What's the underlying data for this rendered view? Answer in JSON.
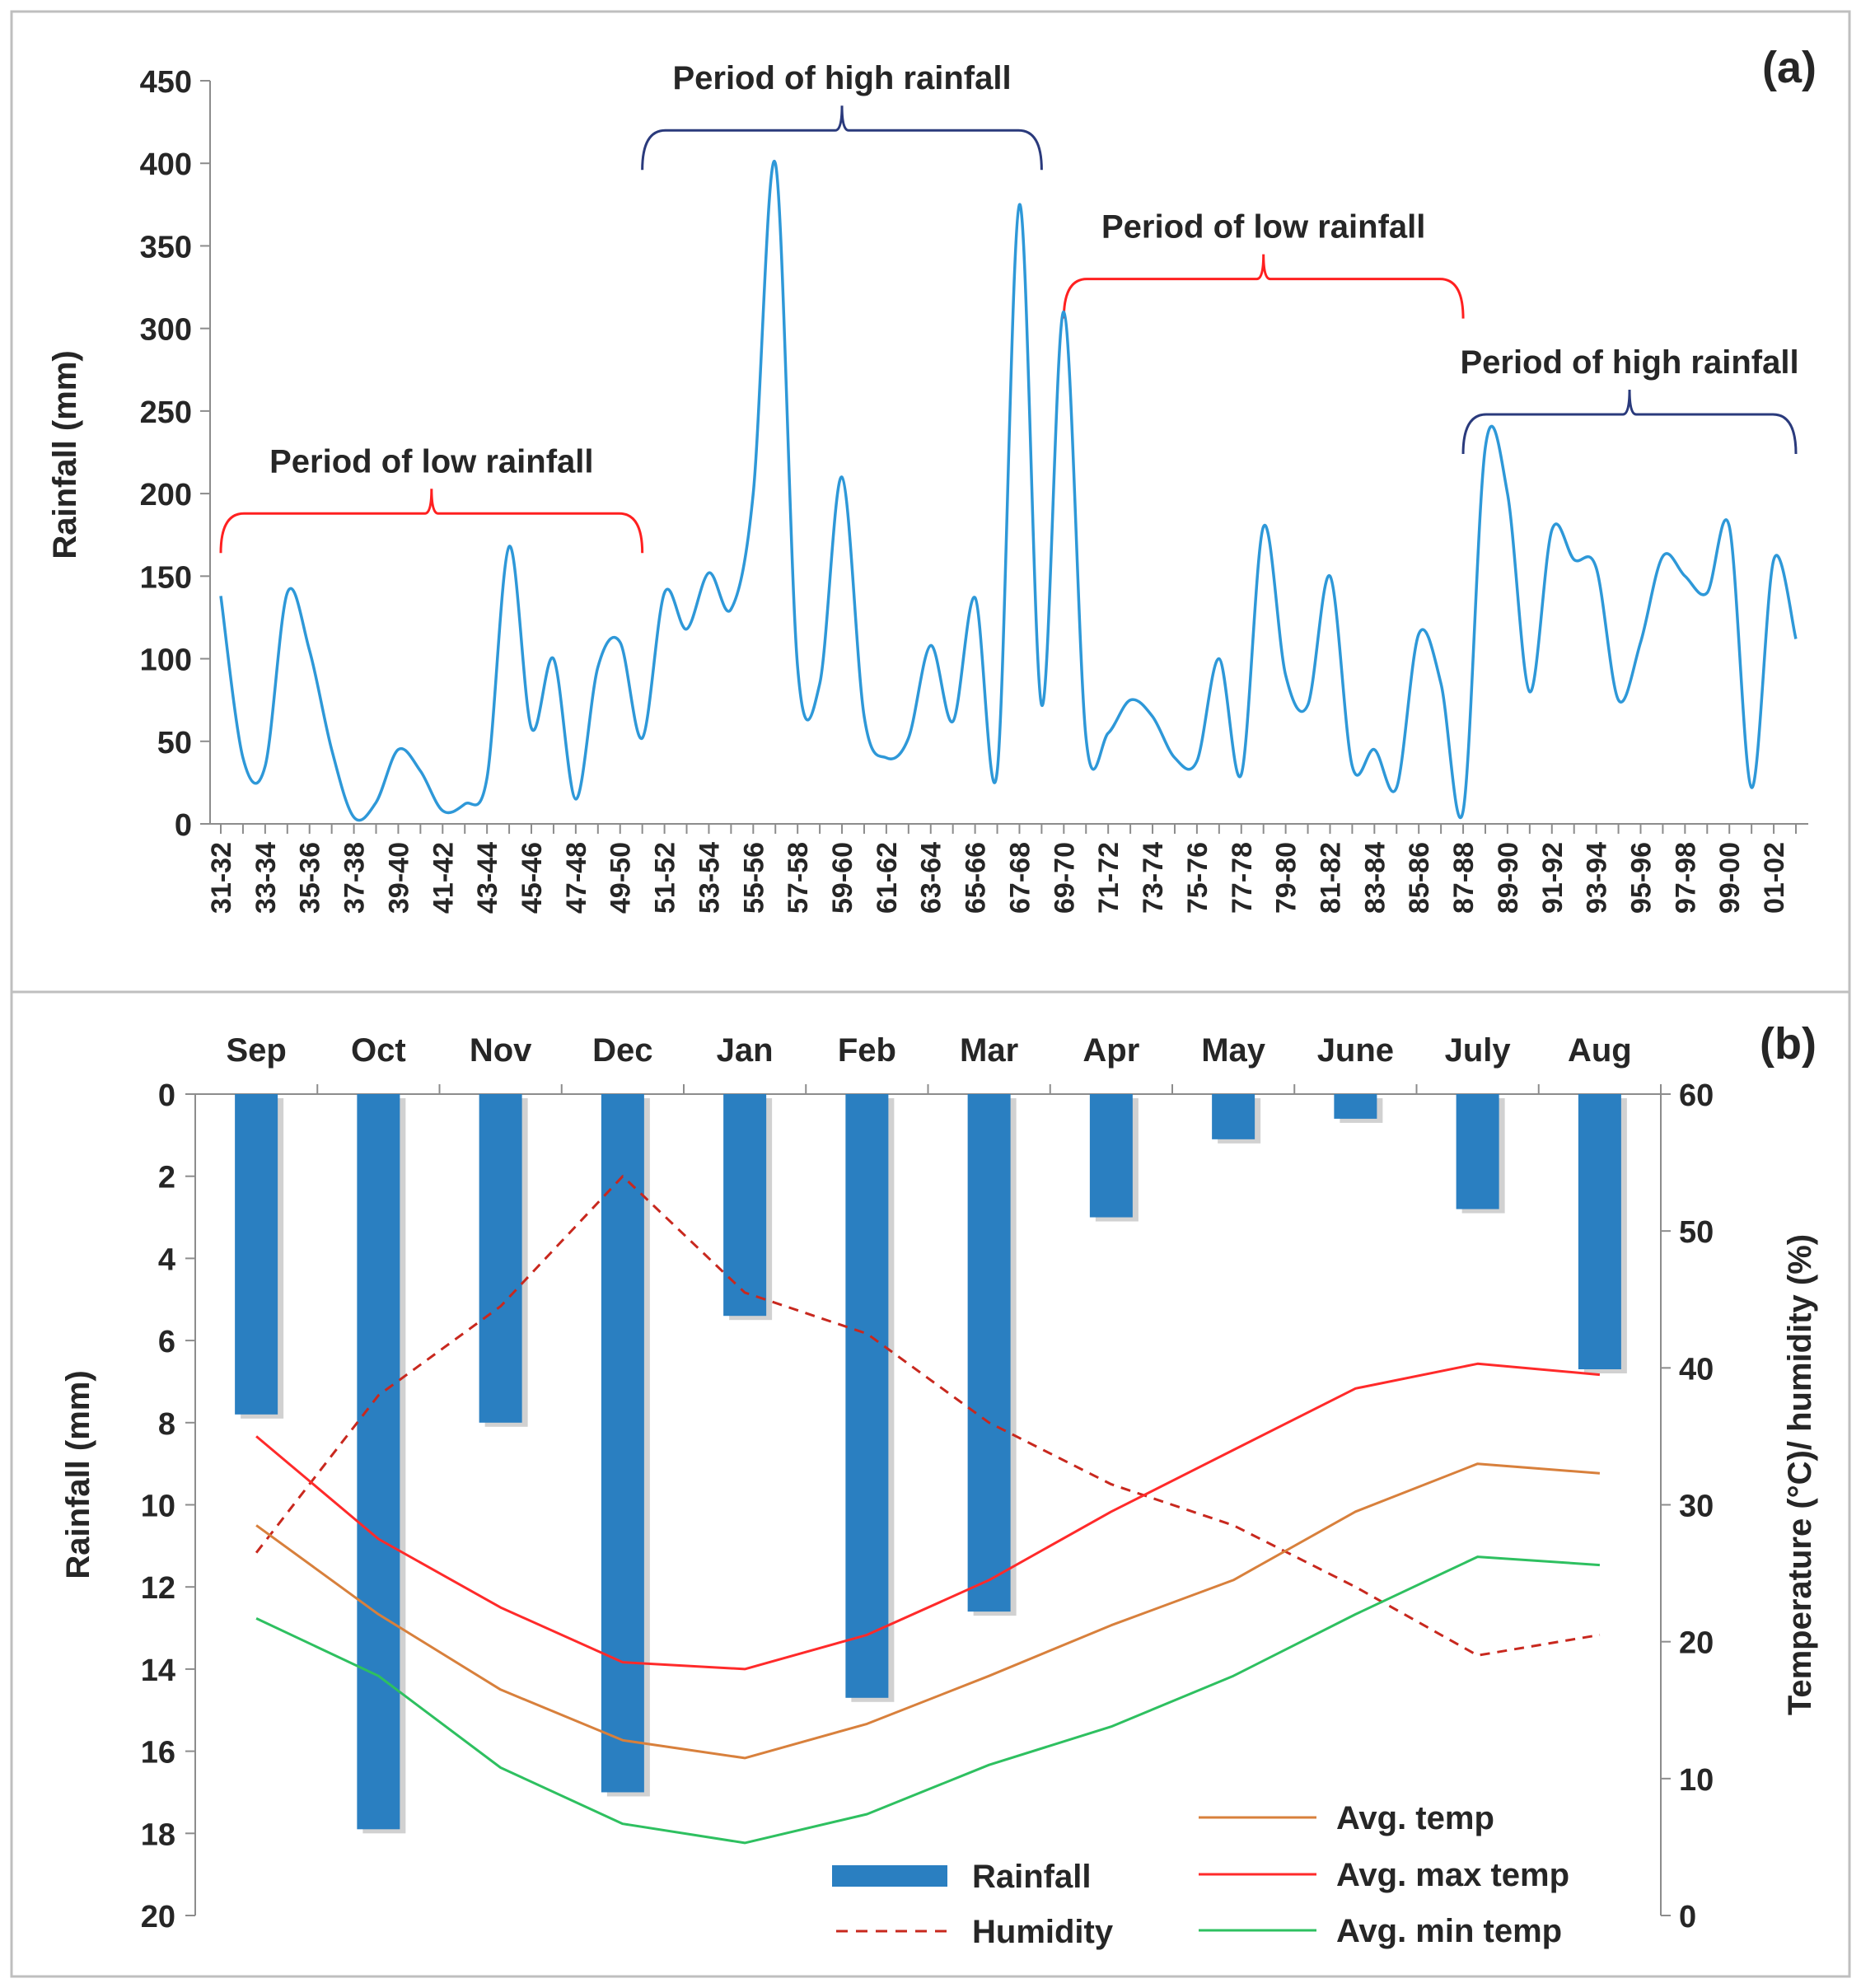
{
  "colors": {
    "rainfall_a": "#2e98d8",
    "bracket_low": "#ff2020",
    "bracket_high": "#2a3a7c",
    "rainfall_bar": "#2a7fc1",
    "humidity": "#c8281e",
    "avg_temp": "#d8803c",
    "avg_max_temp": "#ff2a2a",
    "avg_min_temp": "#2ec060",
    "axis": "#8c8c8c",
    "frame": "#bfbfbf"
  },
  "chart_data": [
    {
      "id": "a",
      "type": "line",
      "panel_label": "(a)",
      "ylabel": "Rainfall (mm)",
      "ylim": [
        0,
        450
      ],
      "yticks": [
        0,
        50,
        100,
        150,
        200,
        250,
        300,
        350,
        400,
        450
      ],
      "x_tick_labels": [
        "31-32",
        "33-34",
        "35-36",
        "37-38",
        "39-40",
        "41-42",
        "43-44",
        "45-46",
        "47-48",
        "49-50",
        "51-52",
        "53-54",
        "55-56",
        "57-58",
        "59-60",
        "61-62",
        "63-64",
        "65-66",
        "67-68",
        "69-70",
        "71-72",
        "73-74",
        "75-76",
        "77-78",
        "79-80",
        "81-82",
        "83-84",
        "85-86",
        "87-88",
        "89-90",
        "91-92",
        "93-94",
        "95-96",
        "97-98",
        "99-00",
        "01-02"
      ],
      "n_points": 72,
      "values": [
        138,
        40,
        35,
        140,
        105,
        45,
        4,
        13,
        45,
        32,
        8,
        12,
        28,
        168,
        58,
        100,
        15,
        95,
        110,
        52,
        140,
        118,
        152,
        130,
        200,
        400,
        95,
        85,
        210,
        65,
        40,
        52,
        108,
        62,
        137,
        32,
        375,
        72,
        310,
        52,
        55,
        75,
        65,
        40,
        38,
        100,
        30,
        180,
        90,
        72,
        150,
        35,
        45,
        22,
        115,
        85,
        8,
        228,
        200,
        80,
        178,
        160,
        155,
        75,
        110,
        162,
        150,
        140,
        180,
        22,
        160,
        112
      ],
      "annotations": [
        {
          "text": "Period of low rainfall",
          "color": "bracket_low",
          "from_index": 0,
          "to_index": 19
        },
        {
          "text": "Period of high rainfall",
          "color": "bracket_high",
          "from_index": 19,
          "to_index": 37
        },
        {
          "text": "Period of low rainfall",
          "color": "bracket_low",
          "from_index": 38,
          "to_index": 56
        },
        {
          "text": "Period of high rainfall",
          "color": "bracket_high",
          "from_index": 56,
          "to_index": 71
        }
      ]
    },
    {
      "id": "b",
      "type": "bar+line",
      "panel_label": "(b)",
      "categories": [
        "Sep",
        "Oct",
        "Nov",
        "Dec",
        "Jan",
        "Feb",
        "Mar",
        "Apr",
        "May",
        "June",
        "July",
        "Aug"
      ],
      "ylabel": "Rainfall (mm)",
      "ylim": [
        0,
        20
      ],
      "yticks": [
        0,
        2,
        4,
        6,
        8,
        10,
        12,
        14,
        16,
        18,
        20
      ],
      "y_inverted": true,
      "y2label": "Temperature (°C)/ humidity (%)",
      "y2lim": [
        0,
        60
      ],
      "y2ticks": [
        0,
        10,
        20,
        30,
        40,
        50,
        60
      ],
      "bars": {
        "name": "Rainfall",
        "values": [
          7.8,
          17.9,
          8.0,
          17.0,
          5.4,
          14.7,
          12.6,
          3.0,
          1.1,
          0.6,
          2.8,
          6.7
        ]
      },
      "series": [
        {
          "name": "Humidity",
          "axis": "y2",
          "style": "dashed",
          "color": "humidity",
          "values": [
            26.5,
            38,
            44.5,
            54,
            45.5,
            42.5,
            36,
            31.5,
            28.5,
            24,
            19,
            20.5
          ]
        },
        {
          "name": "Avg. temp",
          "axis": "y2",
          "style": "solid",
          "color": "avg_temp",
          "values": [
            28.5,
            22,
            16.5,
            12.8,
            11.5,
            14,
            17.5,
            21.2,
            24.5,
            29.5,
            33,
            32.3
          ]
        },
        {
          "name": "Avg. max temp",
          "axis": "y2",
          "style": "solid",
          "color": "avg_max_temp",
          "values": [
            35,
            27.5,
            22.5,
            18.5,
            18,
            20.5,
            24.5,
            29.5,
            34,
            38.5,
            40.3,
            39.5
          ]
        },
        {
          "name": "Avg. min temp",
          "axis": "y2",
          "style": "solid",
          "color": "avg_min_temp",
          "values": [
            21.7,
            17.5,
            10.8,
            6.7,
            5.3,
            7.4,
            11,
            13.8,
            17.5,
            22,
            26.2,
            25.6
          ]
        }
      ],
      "legend": [
        {
          "label": "Rainfall",
          "kind": "bar"
        },
        {
          "label": "Humidity",
          "kind": "dashed"
        },
        {
          "label": "Avg. temp",
          "kind": "line"
        },
        {
          "label": "Avg. max temp",
          "kind": "line"
        },
        {
          "label": "Avg. min temp",
          "kind": "line"
        }
      ],
      "legend_placement": "bottom-right"
    }
  ]
}
